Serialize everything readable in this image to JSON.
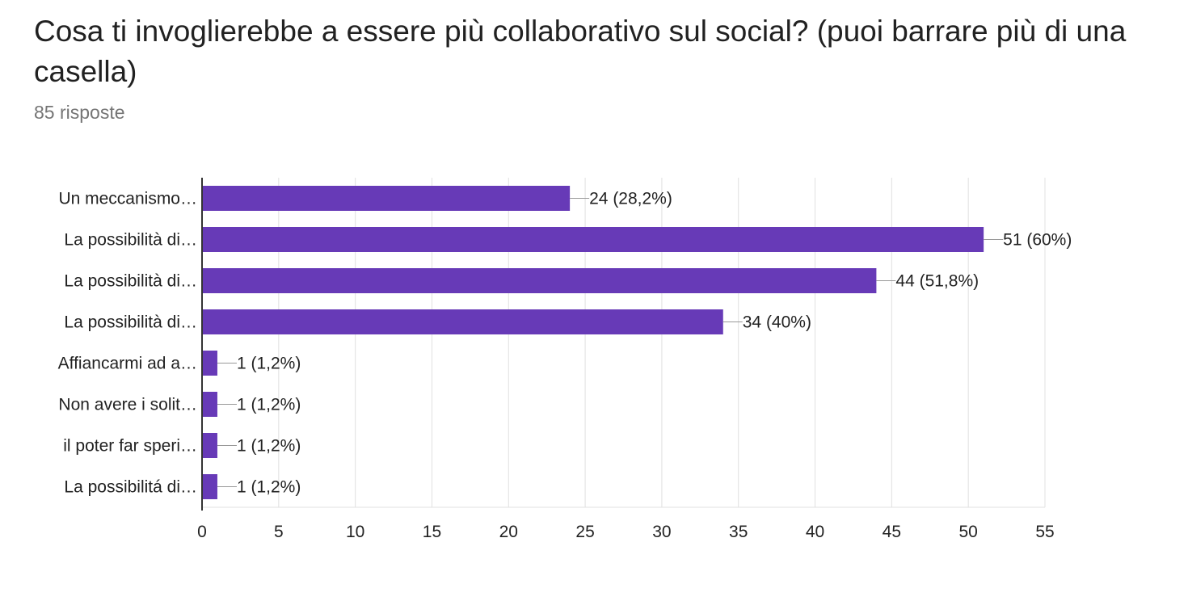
{
  "question": {
    "title": "Cosa ti invoglierebbe a essere più collaborativo sul social? (puoi barrare più di una casella)",
    "responses": "85 risposte"
  },
  "colors": {
    "bar": "#673ab7",
    "grid": "#e0e0e0",
    "axis": "#333333",
    "text": "#222222"
  },
  "chart_data": {
    "type": "bar",
    "orientation": "horizontal",
    "categories": [
      "Un meccanismo…",
      "La possibilità di…",
      "La possibilità di…",
      "La possibilità di…",
      "Affiancarmi ad a…",
      "Non avere i solit…",
      "il poter far speri…",
      "La possibilitá di…"
    ],
    "values": [
      24,
      51,
      44,
      34,
      1,
      1,
      1,
      1
    ],
    "data_labels": [
      "24 (28,2%)",
      "51 (60%)",
      "44 (51,8%)",
      "34 (40%)",
      "1 (1,2%)",
      "1 (1,2%)",
      "1 (1,2%)",
      "1 (1,2%)"
    ],
    "xlim": [
      0,
      55
    ],
    "xticks": [
      0,
      5,
      10,
      15,
      20,
      25,
      30,
      35,
      40,
      45,
      50,
      55
    ],
    "grid": true
  }
}
